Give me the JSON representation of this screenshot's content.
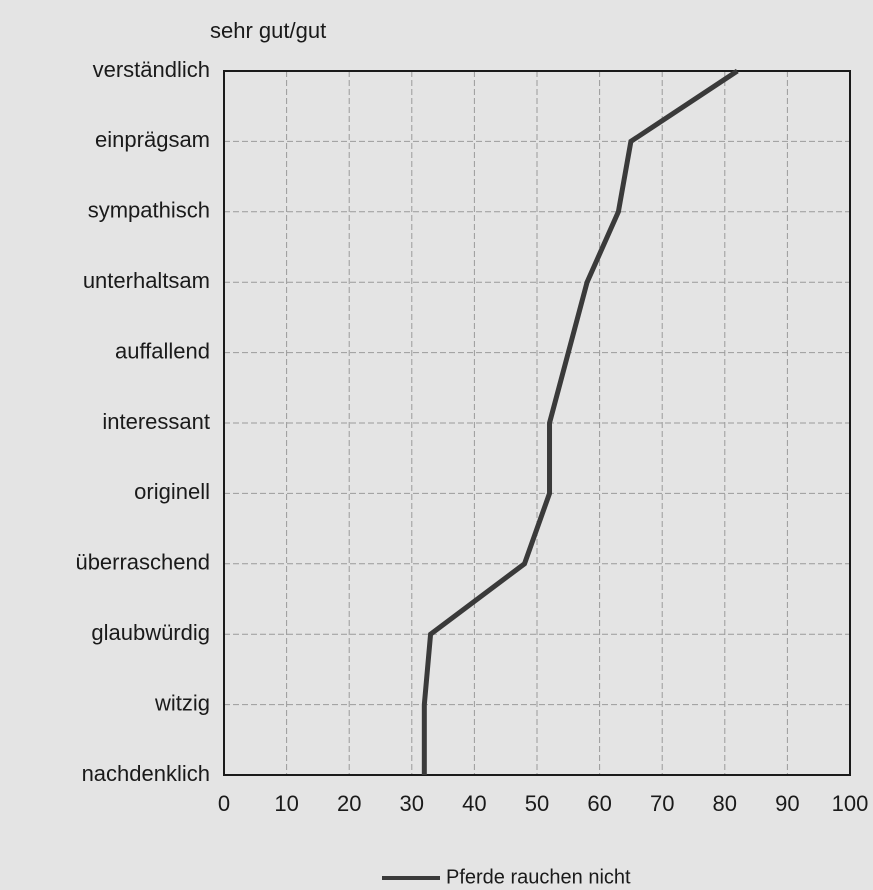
{
  "chart_data": {
    "type": "line",
    "orientation": "horizontal",
    "title": "sehr gut/gut",
    "categories": [
      "verständlich",
      "einprägsam",
      "sympathisch",
      "unterhaltsam",
      "auffallend",
      "interessant",
      "originell",
      "überraschend",
      "glaubwürdig",
      "witzig",
      "nachdenklich"
    ],
    "series": [
      {
        "name": "Pferde rauchen nicht",
        "color": "#3a3a3a",
        "values": [
          82,
          65,
          63,
          58,
          55,
          52,
          52,
          48,
          33,
          32,
          32
        ]
      }
    ],
    "xlim": [
      0,
      100
    ],
    "xticks": [
      0,
      10,
      20,
      30,
      40,
      50,
      60,
      70,
      80,
      90,
      100
    ],
    "grid": true,
    "legend": "bottom"
  }
}
